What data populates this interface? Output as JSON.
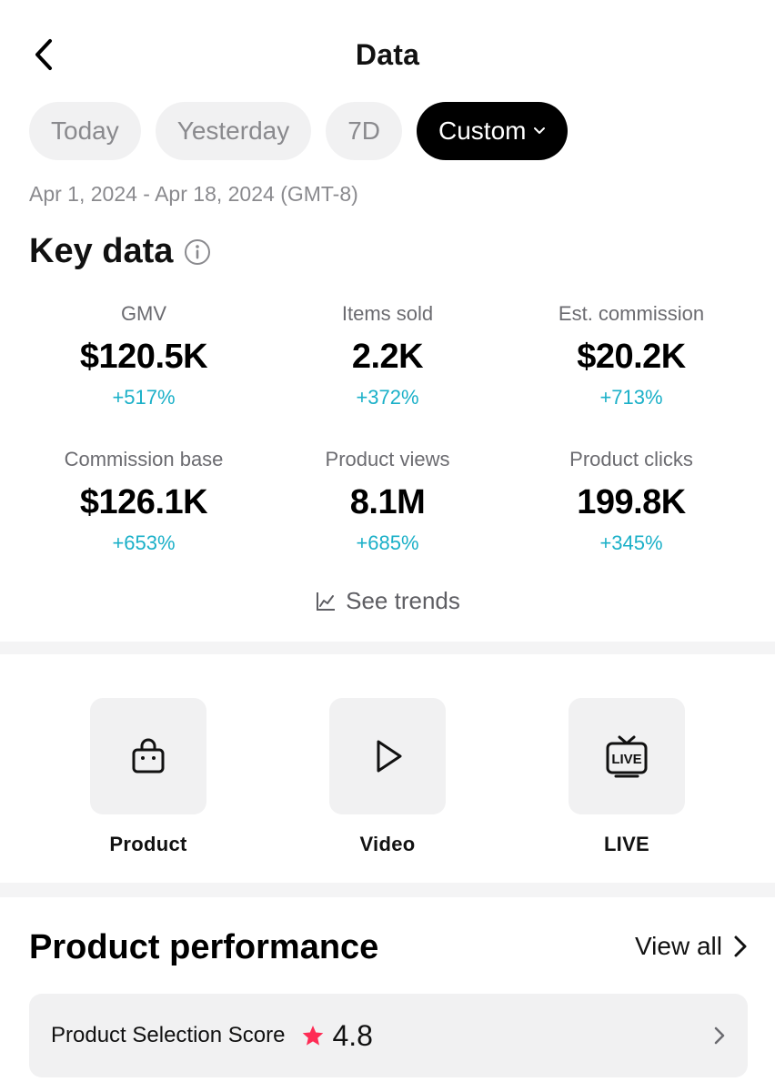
{
  "header": {
    "title": "Data"
  },
  "tabs": [
    {
      "label": "Today",
      "active": false
    },
    {
      "label": "Yesterday",
      "active": false
    },
    {
      "label": "7D",
      "active": false
    },
    {
      "label": "Custom",
      "active": true
    }
  ],
  "date_range": "Apr 1, 2024 - Apr 18, 2024 (GMT-8)",
  "key_data": {
    "title": "Key data",
    "metrics": [
      {
        "label": "GMV",
        "value": "$120.5K",
        "change": "+517%"
      },
      {
        "label": "Items sold",
        "value": "2.2K",
        "change": "+372%"
      },
      {
        "label": "Est. commission",
        "value": "$20.2K",
        "change": "+713%"
      },
      {
        "label": "Commission base",
        "value": "$126.1K",
        "change": "+653%"
      },
      {
        "label": "Product views",
        "value": "8.1M",
        "change": "+685%"
      },
      {
        "label": "Product clicks",
        "value": "199.8K",
        "change": "+345%"
      }
    ],
    "see_trends": "See trends"
  },
  "shortcuts": [
    {
      "label": "Product",
      "icon": "shopping-bag-icon"
    },
    {
      "label": "Video",
      "icon": "play-icon"
    },
    {
      "label": "LIVE",
      "icon": "live-tv-icon"
    }
  ],
  "product_performance": {
    "title": "Product performance",
    "view_all": "View all",
    "score_label": "Product Selection Score",
    "score_value": "4.8"
  },
  "colors": {
    "accent_change": "#1bb0c8",
    "star": "#fe2c55",
    "active_tab_bg": "#000000",
    "chip_bg": "#f1f1f2"
  }
}
